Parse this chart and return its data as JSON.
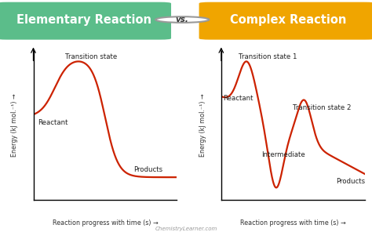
{
  "title_left": "Elementary Reaction",
  "title_right": "Complex Reaction",
  "vs_text": "vs.",
  "title_left_bg": "#5BBD8A",
  "title_right_bg": "#F0A500",
  "curve_color": "#cc2200",
  "bg_color": "#ffffff",
  "panel_bg": "#f5f5f5",
  "ylabel": "Energy (kJ mol.⁻¹) →",
  "xlabel": "Reaction progress with time (s) →",
  "watermark": "ChemistryLearner.com",
  "figsize": [
    4.74,
    2.96
  ],
  "dpi": 100
}
